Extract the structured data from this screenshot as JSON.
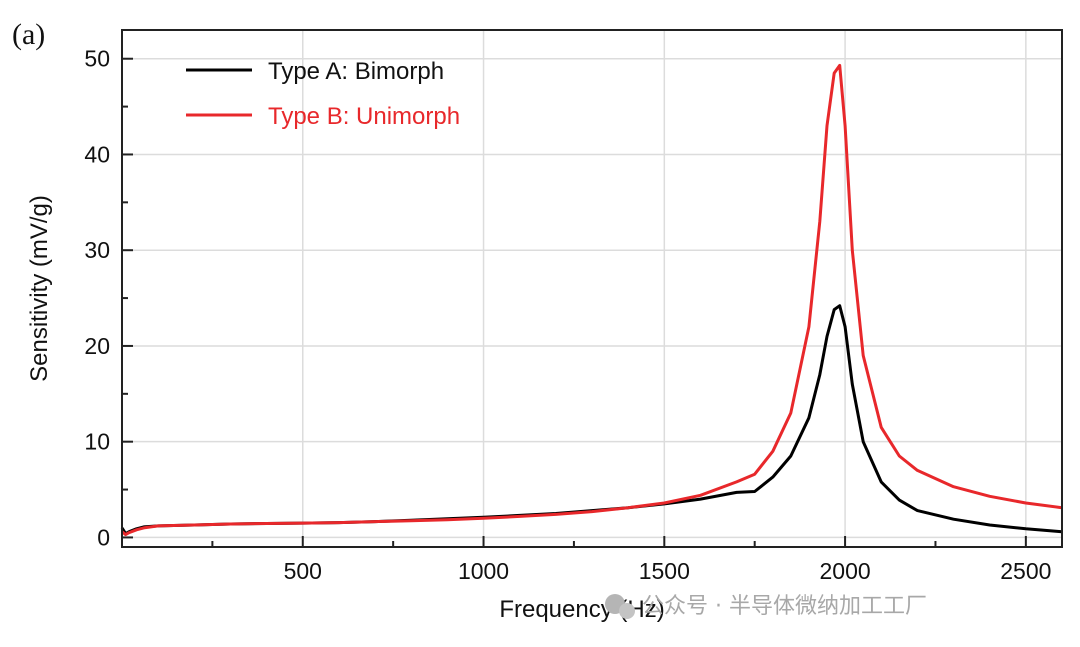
{
  "panel_label": "(a)",
  "watermark": "公众号 · 半导体微纳加工工厂",
  "chart_data": {
    "type": "line",
    "title": "",
    "xlabel": "Frequency (Hz)",
    "ylabel": "Sensitivity (mV/g)",
    "xlim": [
      0,
      2600
    ],
    "ylim": [
      -1,
      53
    ],
    "xticks": [
      500,
      1000,
      1500,
      2000,
      2500
    ],
    "yticks": [
      0,
      10,
      20,
      30,
      40,
      50
    ],
    "grid": true,
    "legend_position": "top-left",
    "series": [
      {
        "name": "Type A: Bimorph",
        "color": "#000000",
        "x": [
          0,
          10,
          20,
          40,
          60,
          100,
          200,
          300,
          400,
          500,
          600,
          700,
          800,
          900,
          1000,
          1100,
          1200,
          1300,
          1400,
          1500,
          1600,
          1700,
          1750,
          1800,
          1850,
          1900,
          1930,
          1950,
          1970,
          1985,
          2000,
          2020,
          2050,
          2100,
          2150,
          2200,
          2300,
          2400,
          2500,
          2600
        ],
        "y": [
          1.0,
          0.4,
          0.6,
          0.9,
          1.1,
          1.2,
          1.3,
          1.4,
          1.45,
          1.5,
          1.55,
          1.65,
          1.8,
          1.95,
          2.1,
          2.3,
          2.5,
          2.8,
          3.1,
          3.5,
          4.0,
          4.7,
          4.8,
          6.3,
          8.5,
          12.5,
          17.0,
          21.0,
          23.8,
          24.2,
          22.0,
          16.0,
          10.0,
          5.8,
          3.9,
          2.8,
          1.9,
          1.3,
          0.9,
          0.6
        ]
      },
      {
        "name": "Type B: Unimorph",
        "color": "#e8282b",
        "x": [
          0,
          10,
          20,
          40,
          60,
          100,
          200,
          300,
          400,
          500,
          600,
          700,
          800,
          900,
          1000,
          1100,
          1200,
          1300,
          1400,
          1500,
          1600,
          1700,
          1750,
          1800,
          1850,
          1900,
          1930,
          1950,
          1970,
          1985,
          2000,
          2020,
          2050,
          2100,
          2150,
          2200,
          2300,
          2400,
          2500,
          2600
        ],
        "y": [
          0.6,
          0.3,
          0.5,
          0.8,
          1.0,
          1.2,
          1.3,
          1.4,
          1.45,
          1.5,
          1.55,
          1.65,
          1.75,
          1.85,
          2.0,
          2.2,
          2.4,
          2.7,
          3.1,
          3.6,
          4.4,
          5.8,
          6.6,
          9.0,
          13.0,
          22.0,
          33.0,
          43.0,
          48.5,
          49.3,
          43.0,
          30.0,
          19.0,
          11.5,
          8.5,
          7.0,
          5.3,
          4.3,
          3.6,
          3.1
        ]
      }
    ]
  }
}
